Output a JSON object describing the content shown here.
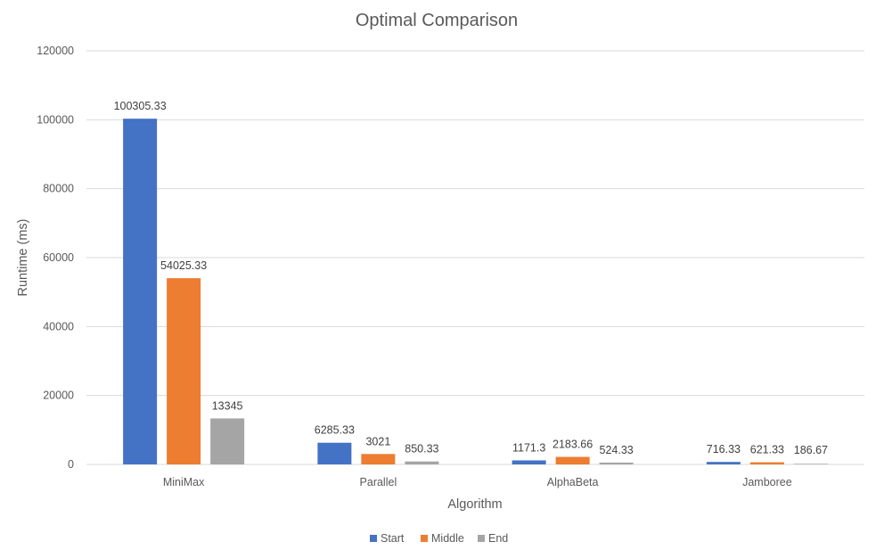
{
  "chart_data": {
    "type": "bar",
    "title": "Optimal Comparison",
    "xlabel": "Algorithm",
    "ylabel": "Runtime (ms)",
    "ylim": [
      0,
      120000
    ],
    "yticks": [
      0,
      20000,
      40000,
      60000,
      80000,
      100000,
      120000
    ],
    "ytick_labels": [
      "0",
      "20000",
      "40000",
      "60000",
      "80000",
      "100000",
      "120000"
    ],
    "grid": true,
    "legend_position": "bottom",
    "categories": [
      "MiniMax",
      "Parallel",
      "AlphaBeta",
      "Jamboree"
    ],
    "series": [
      {
        "name": "Start",
        "color": "#4472c4",
        "values": [
          100305.33,
          6285.33,
          1171.3,
          716.33
        ],
        "labels": [
          "100305.33",
          "6285.33",
          "1171.3",
          "716.33"
        ]
      },
      {
        "name": "Middle",
        "color": "#ed7d31",
        "values": [
          54025.33,
          3021,
          2183.66,
          621.33
        ],
        "labels": [
          "54025.33",
          "3021",
          "2183.66",
          "621.33"
        ]
      },
      {
        "name": "End",
        "color": "#a5a5a5",
        "values": [
          13345,
          850.33,
          524.33,
          186.67
        ],
        "labels": [
          "13345",
          "850.33",
          "524.33",
          "186.67"
        ]
      }
    ]
  }
}
